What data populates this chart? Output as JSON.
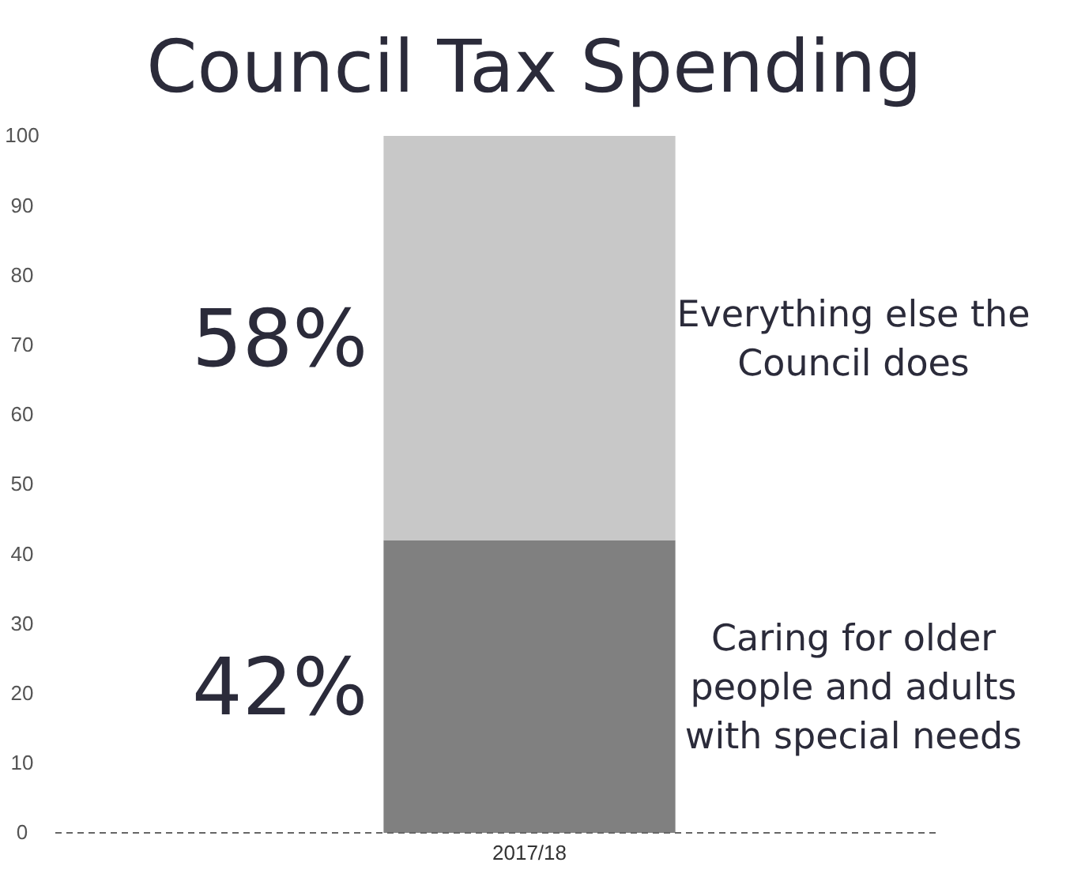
{
  "chart_data": {
    "type": "bar",
    "title": "Council Tax Spending",
    "categories": [
      "2017/18"
    ],
    "stacked": true,
    "series": [
      {
        "name": "Caring for older people and adults with special needs",
        "color": "#808080",
        "values": [
          42
        ]
      },
      {
        "name": "Everything else the Council does",
        "color": "#c8c8c8",
        "values": [
          58
        ]
      }
    ],
    "annotations": [
      "58%",
      "42%"
    ],
    "ylim": [
      0,
      100
    ],
    "yticks": [
      0,
      10,
      20,
      30,
      40,
      50,
      60,
      70,
      80,
      90,
      100
    ],
    "grid": false
  }
}
